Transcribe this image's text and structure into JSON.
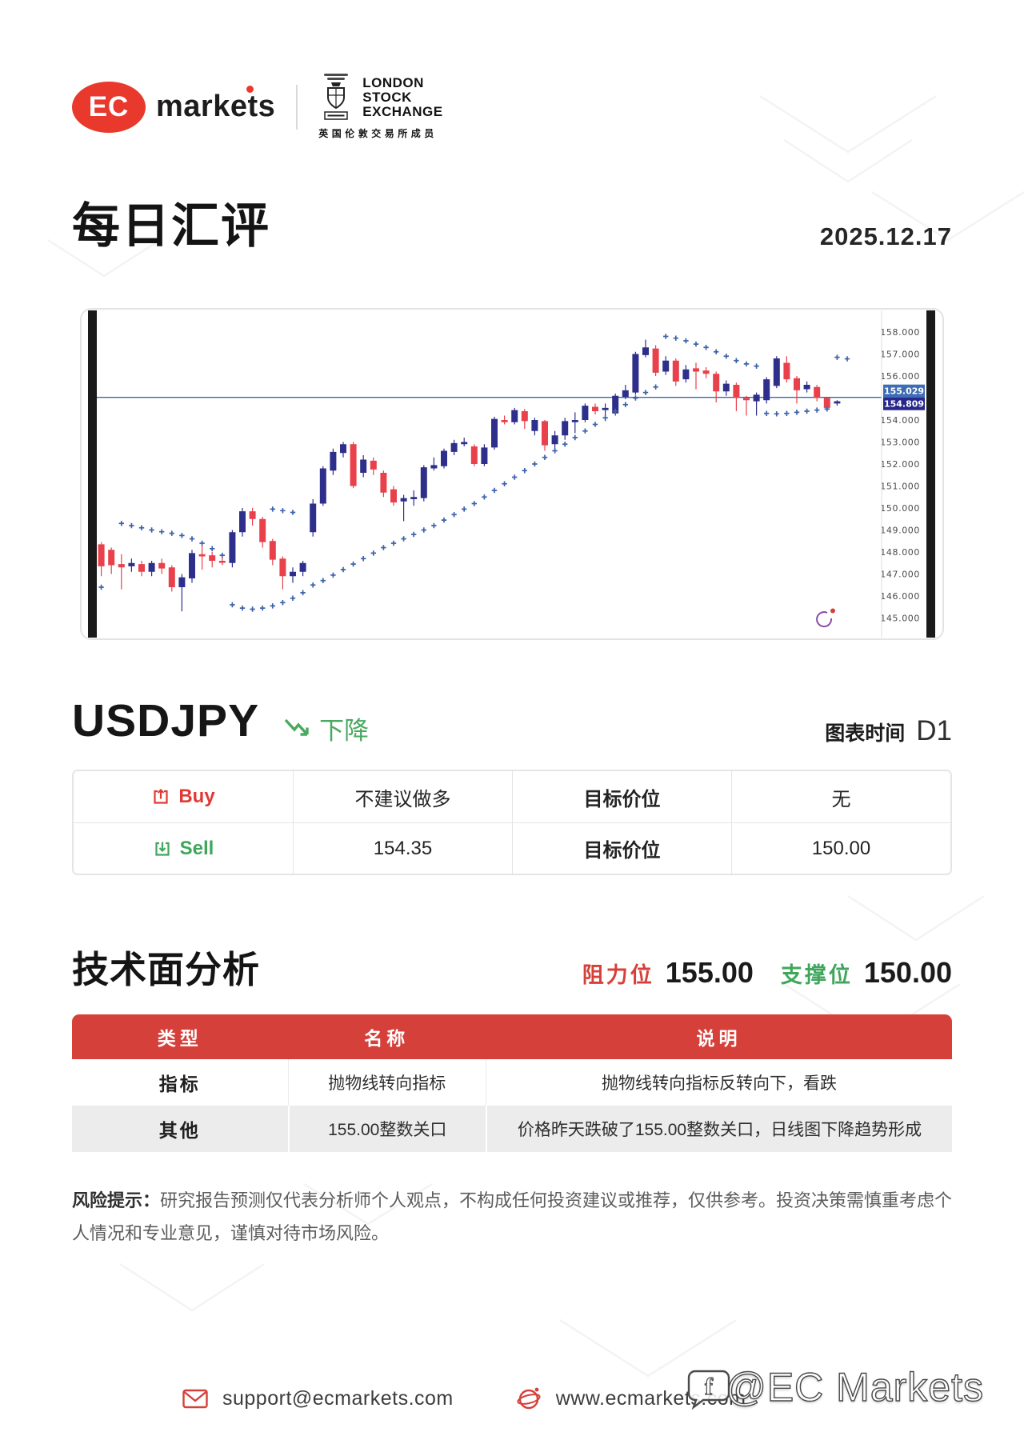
{
  "header": {
    "ec": {
      "ec": "EC",
      "markets": "markets"
    },
    "lse": {
      "line1": "LONDON",
      "line2": "STOCK",
      "line3": "EXCHANGE",
      "cn": "英国伦敦交易所成员"
    }
  },
  "title": {
    "text": "每日汇评",
    "date": "2025.12.17"
  },
  "pair": {
    "symbol": "USDJPY",
    "trend_label": "下降",
    "timeframe_label": "图表时间",
    "timeframe_value": "D1"
  },
  "signals": {
    "rows": [
      {
        "side": "Buy",
        "entry": "不建议做多",
        "target_label": "目标价位",
        "target": "无"
      },
      {
        "side": "Sell",
        "entry": "154.35",
        "target_label": "目标价位",
        "target": "150.00"
      }
    ]
  },
  "technical": {
    "title": "技术面分析",
    "resistance_label": "阻力位",
    "resistance": "155.00",
    "support_label": "支撑位",
    "support": "150.00",
    "table": {
      "headers": [
        "类型",
        "名称",
        "说明"
      ],
      "rows": [
        [
          "指标",
          "抛物线转向指标",
          "抛物线转向指标反转向下，看跌"
        ],
        [
          "其他",
          "155.00整数关口",
          "价格昨天跌破了155.00整数关口，日线图下降趋势形成"
        ]
      ]
    }
  },
  "risk": {
    "label": "风险提示：",
    "text": "研究报告预测仅代表分析师个人观点，不构成任何投资建议或推荐，仅供参考。投资决策需慎重考虑个人情况和专业意见，谨慎对待市场风险。"
  },
  "footer": {
    "email": "support@ecmarkets.com",
    "website": "www.ecmarkets.com",
    "watermark": "@EC Markets"
  },
  "colors": {
    "brand_red": "#e8392c",
    "accent_red": "#d6403a",
    "green": "#3fa65c",
    "candle_up": "#2d2f8b",
    "candle_down": "#e9414b",
    "sar_dot": "#3d62ab",
    "hline": "#3c66a4",
    "price_label1_bg": "#3d6db5",
    "price_label2_bg": "#28288c",
    "table_gray": "#ececec"
  },
  "chart_data": {
    "type": "candlestick",
    "symbol": "USDJPY",
    "timeframe": "D1",
    "indicator": "Parabolic SAR",
    "y_axis": {
      "min": 145.0,
      "max": 158.0,
      "ticks": [
        "158.000",
        "157.000",
        "156.000",
        "154.000",
        "153.000",
        "152.000",
        "151.000",
        "150.000",
        "149.000",
        "148.000",
        "147.000",
        "146.000",
        "145.000"
      ]
    },
    "hline": 155.029,
    "price_labels": [
      {
        "value": "155.029",
        "bg": "#3d6db5"
      },
      {
        "value": "154.809",
        "bg": "#28288c"
      }
    ],
    "colors": {
      "up": "#2d2f8b",
      "down": "#e9414b",
      "dot": "#3d62ab",
      "hline": "#3c66a4"
    },
    "candles": [
      [
        147.9,
        148.6,
        147.7,
        148.4
      ],
      [
        148.35,
        148.45,
        146.9,
        147.35
      ],
      [
        148.1,
        148.2,
        147.0,
        147.4
      ],
      [
        147.45,
        147.9,
        146.3,
        147.3
      ],
      [
        147.35,
        147.7,
        147.1,
        147.5
      ],
      [
        147.45,
        147.6,
        146.9,
        147.1
      ],
      [
        147.1,
        147.6,
        146.9,
        147.5
      ],
      [
        147.5,
        147.7,
        147.0,
        147.25
      ],
      [
        147.3,
        147.4,
        146.2,
        146.4
      ],
      [
        146.4,
        147.0,
        145.3,
        146.85
      ],
      [
        146.8,
        148.1,
        146.6,
        147.95
      ],
      [
        147.9,
        148.3,
        147.2,
        147.8
      ],
      [
        147.85,
        148.0,
        147.3,
        147.6
      ],
      [
        147.6,
        147.9,
        147.4,
        147.55
      ],
      [
        147.5,
        149.0,
        147.3,
        148.9
      ],
      [
        148.9,
        150.0,
        148.7,
        149.85
      ],
      [
        149.85,
        150.0,
        149.2,
        149.5
      ],
      [
        149.5,
        149.6,
        148.2,
        148.45
      ],
      [
        148.5,
        148.6,
        147.4,
        147.65
      ],
      [
        147.7,
        147.8,
        146.3,
        146.9
      ],
      [
        146.9,
        147.3,
        146.6,
        147.1
      ],
      [
        147.1,
        147.6,
        146.9,
        147.5
      ],
      [
        148.9,
        150.4,
        148.7,
        150.2
      ],
      [
        150.2,
        151.9,
        150.1,
        151.8
      ],
      [
        151.7,
        152.7,
        151.5,
        152.55
      ],
      [
        152.5,
        153.0,
        152.3,
        152.9
      ],
      [
        152.9,
        153.0,
        150.9,
        151.0
      ],
      [
        151.6,
        152.4,
        151.4,
        152.2
      ],
      [
        152.15,
        152.3,
        151.5,
        151.75
      ],
      [
        151.6,
        151.7,
        150.5,
        150.7
      ],
      [
        150.85,
        151.0,
        150.1,
        150.25
      ],
      [
        150.3,
        150.6,
        149.4,
        150.45
      ],
      [
        150.4,
        150.8,
        150.1,
        150.5
      ],
      [
        150.45,
        151.95,
        150.3,
        151.85
      ],
      [
        151.8,
        152.3,
        151.7,
        151.95
      ],
      [
        151.9,
        152.7,
        151.8,
        152.6
      ],
      [
        152.55,
        153.1,
        152.4,
        152.95
      ],
      [
        152.9,
        153.2,
        152.8,
        153.0
      ],
      [
        152.8,
        152.9,
        151.9,
        152.0
      ],
      [
        152.0,
        152.9,
        151.9,
        152.75
      ],
      [
        152.75,
        154.15,
        152.65,
        154.05
      ],
      [
        154.0,
        154.2,
        153.8,
        153.9
      ],
      [
        153.9,
        154.55,
        153.8,
        154.45
      ],
      [
        154.4,
        154.5,
        153.6,
        153.95
      ],
      [
        153.5,
        154.1,
        153.3,
        154.0
      ],
      [
        153.95,
        154.0,
        152.6,
        152.85
      ],
      [
        152.9,
        153.5,
        152.7,
        153.3
      ],
      [
        153.3,
        154.1,
        153.1,
        153.95
      ],
      [
        153.9,
        154.35,
        153.4,
        154.0
      ],
      [
        154.0,
        154.75,
        153.9,
        154.65
      ],
      [
        154.6,
        154.75,
        154.25,
        154.4
      ],
      [
        154.45,
        154.75,
        153.95,
        154.55
      ],
      [
        154.3,
        155.2,
        154.2,
        155.1
      ],
      [
        155.05,
        155.6,
        154.95,
        155.35
      ],
      [
        155.25,
        157.1,
        155.15,
        157.0
      ],
      [
        156.95,
        157.65,
        156.85,
        157.3
      ],
      [
        157.25,
        157.4,
        156.0,
        156.15
      ],
      [
        156.2,
        156.9,
        156.05,
        156.7
      ],
      [
        156.7,
        156.8,
        155.55,
        155.75
      ],
      [
        155.85,
        156.5,
        155.7,
        156.3
      ],
      [
        156.35,
        156.6,
        155.4,
        156.2
      ],
      [
        156.25,
        156.4,
        155.9,
        156.1
      ],
      [
        156.1,
        156.2,
        154.8,
        155.3
      ],
      [
        155.3,
        155.8,
        155.1,
        155.65
      ],
      [
        155.6,
        155.7,
        154.4,
        155.0
      ],
      [
        155.0,
        155.1,
        154.2,
        154.9
      ],
      [
        154.85,
        155.25,
        154.2,
        155.15
      ],
      [
        154.9,
        155.95,
        154.75,
        155.85
      ],
      [
        155.55,
        156.9,
        155.45,
        156.8
      ],
      [
        156.6,
        156.9,
        155.7,
        155.85
      ],
      [
        155.9,
        156.0,
        154.75,
        155.35
      ],
      [
        155.4,
        155.75,
        155.25,
        155.6
      ],
      [
        155.5,
        155.6,
        154.85,
        155.0
      ],
      [
        155.0,
        155.05,
        154.4,
        154.55
      ],
      [
        154.75,
        154.9,
        154.65,
        154.85
      ]
    ],
    "sar": [
      [
        0,
        146.45
      ],
      [
        1,
        146.4
      ],
      [
        3,
        149.3
      ],
      [
        4,
        149.2
      ],
      [
        5,
        149.1
      ],
      [
        6,
        149.0
      ],
      [
        7,
        148.92
      ],
      [
        8,
        148.85
      ],
      [
        9,
        148.75
      ],
      [
        10,
        148.6
      ],
      [
        11,
        148.4
      ],
      [
        12,
        148.15
      ],
      [
        13,
        147.85
      ],
      [
        14,
        145.6
      ],
      [
        15,
        145.45
      ],
      [
        16,
        145.4
      ],
      [
        17,
        145.45
      ],
      [
        18,
        145.55
      ],
      [
        19,
        145.7
      ],
      [
        20,
        145.9
      ],
      [
        21,
        146.15
      ],
      [
        18,
        149.95
      ],
      [
        19,
        149.88
      ],
      [
        20,
        149.8
      ],
      [
        22,
        146.5
      ],
      [
        23,
        146.7
      ],
      [
        24,
        146.95
      ],
      [
        25,
        147.2
      ],
      [
        26,
        147.45
      ],
      [
        27,
        147.7
      ],
      [
        28,
        147.95
      ],
      [
        29,
        148.2
      ],
      [
        30,
        148.4
      ],
      [
        31,
        148.6
      ],
      [
        32,
        148.8
      ],
      [
        33,
        149.0
      ],
      [
        34,
        149.2
      ],
      [
        35,
        149.45
      ],
      [
        36,
        149.7
      ],
      [
        37,
        149.95
      ],
      [
        38,
        150.2
      ],
      [
        39,
        150.5
      ],
      [
        40,
        150.8
      ],
      [
        41,
        151.1
      ],
      [
        42,
        151.4
      ],
      [
        43,
        151.7
      ],
      [
        44,
        152.0
      ],
      [
        45,
        152.3
      ],
      [
        46,
        152.6
      ],
      [
        47,
        152.9
      ],
      [
        48,
        153.2
      ],
      [
        49,
        153.5
      ],
      [
        50,
        153.8
      ],
      [
        51,
        154.1
      ],
      [
        52,
        154.4
      ],
      [
        53,
        154.7
      ],
      [
        54,
        155.0
      ],
      [
        55,
        155.25
      ],
      [
        56,
        155.5
      ],
      [
        57,
        157.8
      ],
      [
        58,
        157.72
      ],
      [
        59,
        157.6
      ],
      [
        60,
        157.45
      ],
      [
        61,
        157.3
      ],
      [
        62,
        157.1
      ],
      [
        63,
        156.9
      ],
      [
        64,
        156.7
      ],
      [
        65,
        156.55
      ],
      [
        66,
        156.45
      ],
      [
        67,
        154.3
      ],
      [
        68,
        154.28
      ],
      [
        69,
        154.3
      ],
      [
        70,
        154.35
      ],
      [
        71,
        154.4
      ],
      [
        72,
        154.45
      ],
      [
        73,
        154.5
      ],
      [
        74,
        156.85
      ],
      [
        75,
        156.78
      ]
    ]
  }
}
